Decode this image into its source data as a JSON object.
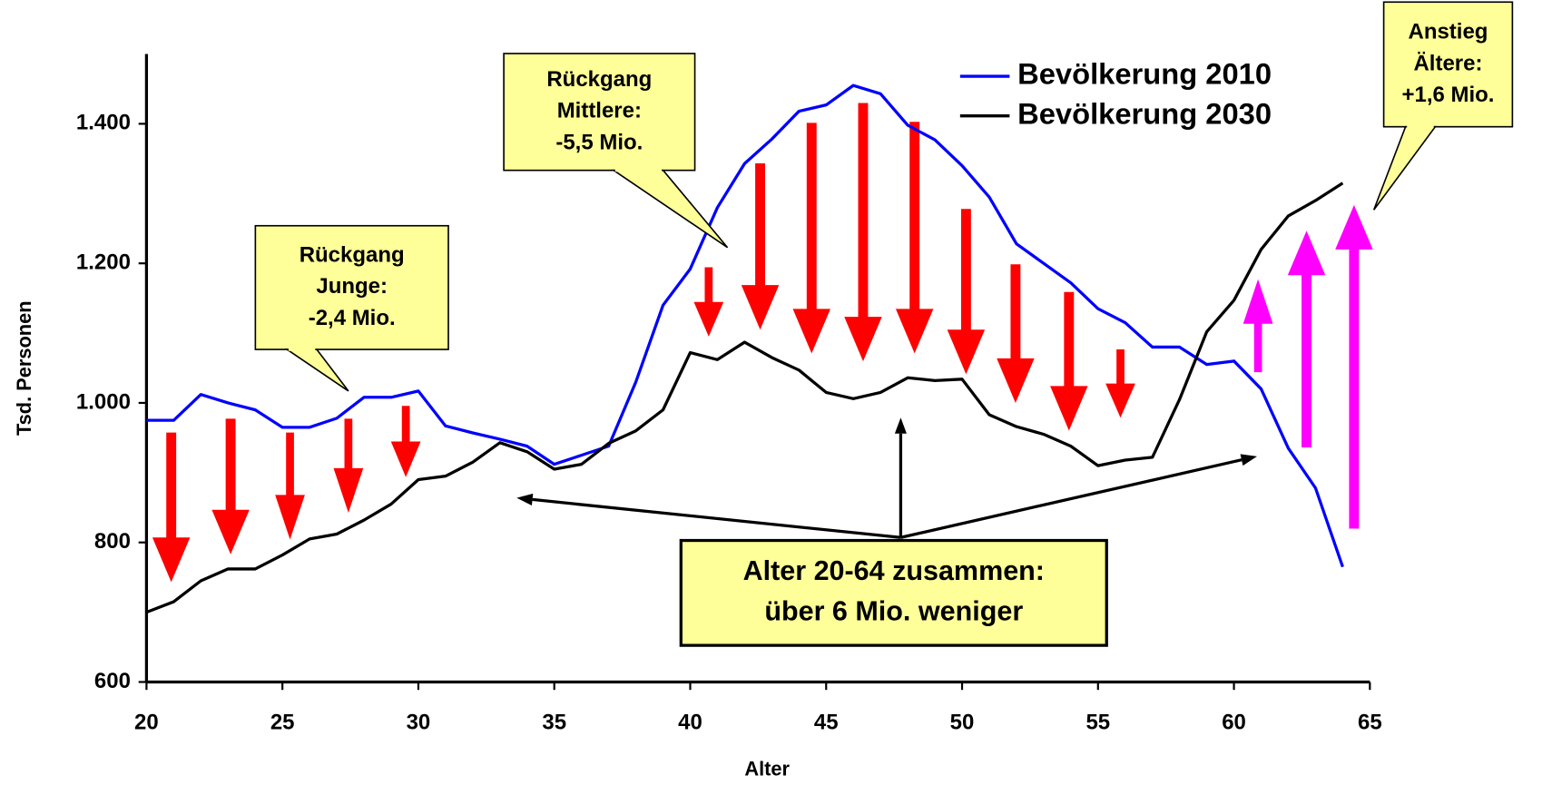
{
  "chart_data": {
    "type": "line",
    "x_label": "Alter",
    "y_label": "Tsd. Personen",
    "x": [
      20,
      21,
      22,
      23,
      24,
      25,
      26,
      27,
      28,
      29,
      30,
      31,
      32,
      33,
      34,
      35,
      36,
      37,
      38,
      39,
      40,
      41,
      42,
      43,
      44,
      45,
      46,
      47,
      48,
      49,
      50,
      51,
      52,
      53,
      54,
      55,
      56,
      57,
      58,
      59,
      60,
      61,
      62,
      63,
      64
    ],
    "series": [
      {
        "name": "Bevölkerung 2010",
        "color": "#0000ff",
        "values": [
          975,
          975,
          1012,
          1000,
          990,
          965,
          965,
          978,
          1008,
          1008,
          1017,
          967,
          957,
          948,
          938,
          912,
          925,
          938,
          1030,
          1140,
          1192,
          1280,
          1343,
          1378,
          1418,
          1427,
          1455,
          1443,
          1398,
          1377,
          1340,
          1295,
          1228,
          1200,
          1172,
          1135,
          1115,
          1080,
          1080,
          1055,
          1060,
          1020,
          935,
          878,
          765
        ]
      },
      {
        "name": "Bevölkerung 2030",
        "color": "#000000",
        "values": [
          700,
          715,
          745,
          762,
          762,
          782,
          805,
          812,
          832,
          855,
          890,
          895,
          915,
          943,
          930,
          905,
          912,
          942,
          960,
          990,
          1072,
          1062,
          1087,
          1065,
          1047,
          1015,
          1006,
          1015,
          1036,
          1032,
          1034,
          983,
          966,
          955,
          938,
          910,
          918,
          922,
          1005,
          1102,
          1147,
          1220,
          1268,
          1290,
          1315
        ]
      }
    ],
    "xlim": [
      20,
      65
    ],
    "xticks": [
      20,
      25,
      30,
      35,
      40,
      45,
      50,
      55,
      60,
      65
    ],
    "ylim": [
      600,
      1500
    ],
    "yticks": [
      600,
      800,
      {
        "value": 1000,
        "label": "1.000"
      },
      {
        "value": 1200,
        "label": "1.200"
      },
      {
        "value": 1400,
        "label": "1.400"
      }
    ],
    "legend": "upper right",
    "annotations": [
      {
        "text": [
          "Rückgang",
          "Junge:",
          "-2,4 Mio."
        ]
      },
      {
        "text": [
          "Rückgang",
          "Mittlere:",
          "-5,5 Mio."
        ]
      },
      {
        "text": [
          "Anstieg",
          "Ältere:",
          "+1,6 Mio."
        ]
      },
      {
        "text": [
          "Alter 20-64 zusammen:",
          "über 6 Mio. weniger"
        ]
      }
    ]
  }
}
